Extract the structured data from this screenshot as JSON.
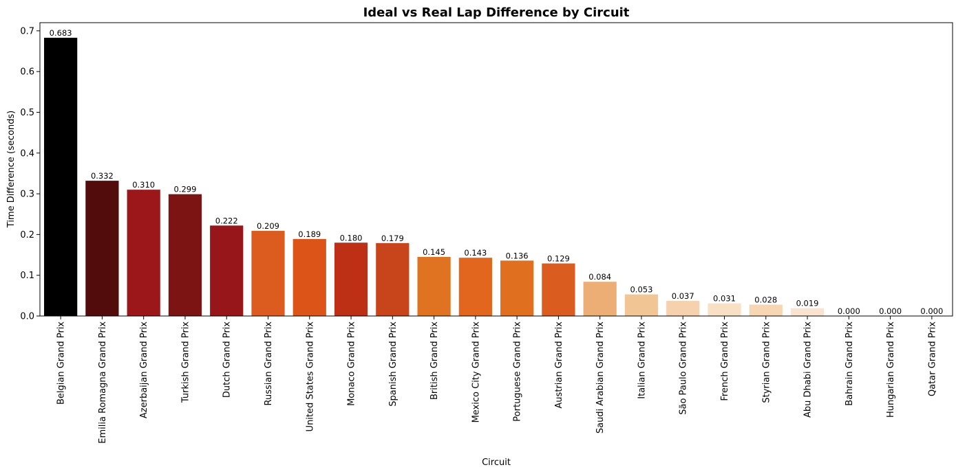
{
  "chart_data": {
    "type": "bar",
    "title": "Ideal vs Real Lap Difference by Circuit",
    "xlabel": "Circuit",
    "ylabel": "Time Difference (seconds)",
    "ylim": [
      0,
      0.72
    ],
    "yticks": [
      "0.0",
      "0.1",
      "0.2",
      "0.3",
      "0.4",
      "0.5",
      "0.6",
      "0.7"
    ],
    "grid": false,
    "categories": [
      "Belgian Grand Prix",
      "Emilia Romagna Grand Prix",
      "Azerbaijan Grand Prix",
      "Turkish Grand Prix",
      "Dutch Grand Prix",
      "Russian Grand Prix",
      "United States Grand Prix",
      "Monaco Grand Prix",
      "Spanish Grand Prix",
      "British Grand Prix",
      "Mexico City Grand Prix",
      "Portuguese Grand Prix",
      "Austrian Grand Prix",
      "Saudi Arabian Grand Prix",
      "Italian Grand Prix",
      "São Paulo Grand Prix",
      "French Grand Prix",
      "Styrian Grand Prix",
      "Abu Dhabi Grand Prix",
      "Bahrain Grand Prix",
      "Hungarian Grand Prix",
      "Qatar Grand Prix"
    ],
    "values": [
      0.683,
      0.332,
      0.31,
      0.299,
      0.222,
      0.209,
      0.189,
      0.18,
      0.179,
      0.145,
      0.143,
      0.136,
      0.129,
      0.084,
      0.053,
      0.037,
      0.031,
      0.028,
      0.019,
      0.0,
      0.0,
      0.0
    ],
    "value_labels": [
      "0.683",
      "0.332",
      "0.310",
      "0.299",
      "0.222",
      "0.209",
      "0.189",
      "0.180",
      "0.179",
      "0.145",
      "0.143",
      "0.136",
      "0.129",
      "0.084",
      "0.053",
      "0.037",
      "0.031",
      "0.028",
      "0.019",
      "0.000",
      "0.000",
      "0.000"
    ],
    "colors": [
      "#000000",
      "#520c0c",
      "#9c1719",
      "#7d1414",
      "#961619",
      "#dc5b1f",
      "#dc5418",
      "#bd3016",
      "#c8441b",
      "#e07322",
      "#e2661d",
      "#e0701f",
      "#da5c1e",
      "#ecae74",
      "#f2c595",
      "#f5d1ad",
      "#f8e0c4",
      "#f7d6b4",
      "#fbe4cf",
      "#fdeee0",
      "#fdeee0",
      "#fdeee0"
    ]
  }
}
